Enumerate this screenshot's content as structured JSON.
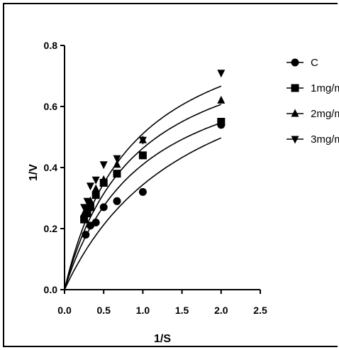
{
  "chart_data": {
    "type": "scatter",
    "xlabel": "1/S",
    "ylabel": "1/V",
    "xlim": [
      0,
      2.5
    ],
    "ylim": [
      0,
      0.8
    ],
    "xticks": [
      "0.0",
      "0.5",
      "1.0",
      "1.5",
      "2.0",
      "2.5"
    ],
    "yticks": [
      "0.0",
      "0.2",
      "0.4",
      "0.6",
      "0.8"
    ],
    "legend_position": "right",
    "grid": false,
    "series": [
      {
        "name": "C",
        "marker": "circle",
        "points": [
          [
            0.27,
            0.18
          ],
          [
            0.33,
            0.21
          ],
          [
            0.4,
            0.22
          ],
          [
            0.5,
            0.27
          ],
          [
            0.67,
            0.29
          ],
          [
            1.0,
            0.32
          ],
          [
            2.0,
            0.54
          ]
        ],
        "fit": {
          "vmax": 0.9,
          "k": 1.62
        }
      },
      {
        "name": "1mg/m",
        "marker": "square",
        "points": [
          [
            0.25,
            0.23
          ],
          [
            0.29,
            0.25
          ],
          [
            0.33,
            0.27
          ],
          [
            0.4,
            0.31
          ],
          [
            0.5,
            0.35
          ],
          [
            0.67,
            0.38
          ],
          [
            1.0,
            0.44
          ],
          [
            2.0,
            0.55
          ]
        ],
        "fit": {
          "vmax": 0.82,
          "k": 1.0
        }
      },
      {
        "name": "2mg/m",
        "marker": "triangle-up",
        "points": [
          [
            0.25,
            0.25
          ],
          [
            0.29,
            0.27
          ],
          [
            0.33,
            0.29
          ],
          [
            0.4,
            0.33
          ],
          [
            0.5,
            0.36
          ],
          [
            0.67,
            0.41
          ],
          [
            1.0,
            0.49
          ],
          [
            2.0,
            0.62
          ]
        ],
        "fit": {
          "vmax": 0.88,
          "k": 0.9
        }
      },
      {
        "name": "3mg/m",
        "marker": "triangle-down",
        "points": [
          [
            0.25,
            0.27
          ],
          [
            0.29,
            0.29
          ],
          [
            0.33,
            0.34
          ],
          [
            0.4,
            0.36
          ],
          [
            0.5,
            0.41
          ],
          [
            0.67,
            0.43
          ],
          [
            1.0,
            0.49
          ],
          [
            2.0,
            0.71
          ]
        ],
        "fit": {
          "vmax": 0.96,
          "k": 0.88
        }
      }
    ]
  }
}
